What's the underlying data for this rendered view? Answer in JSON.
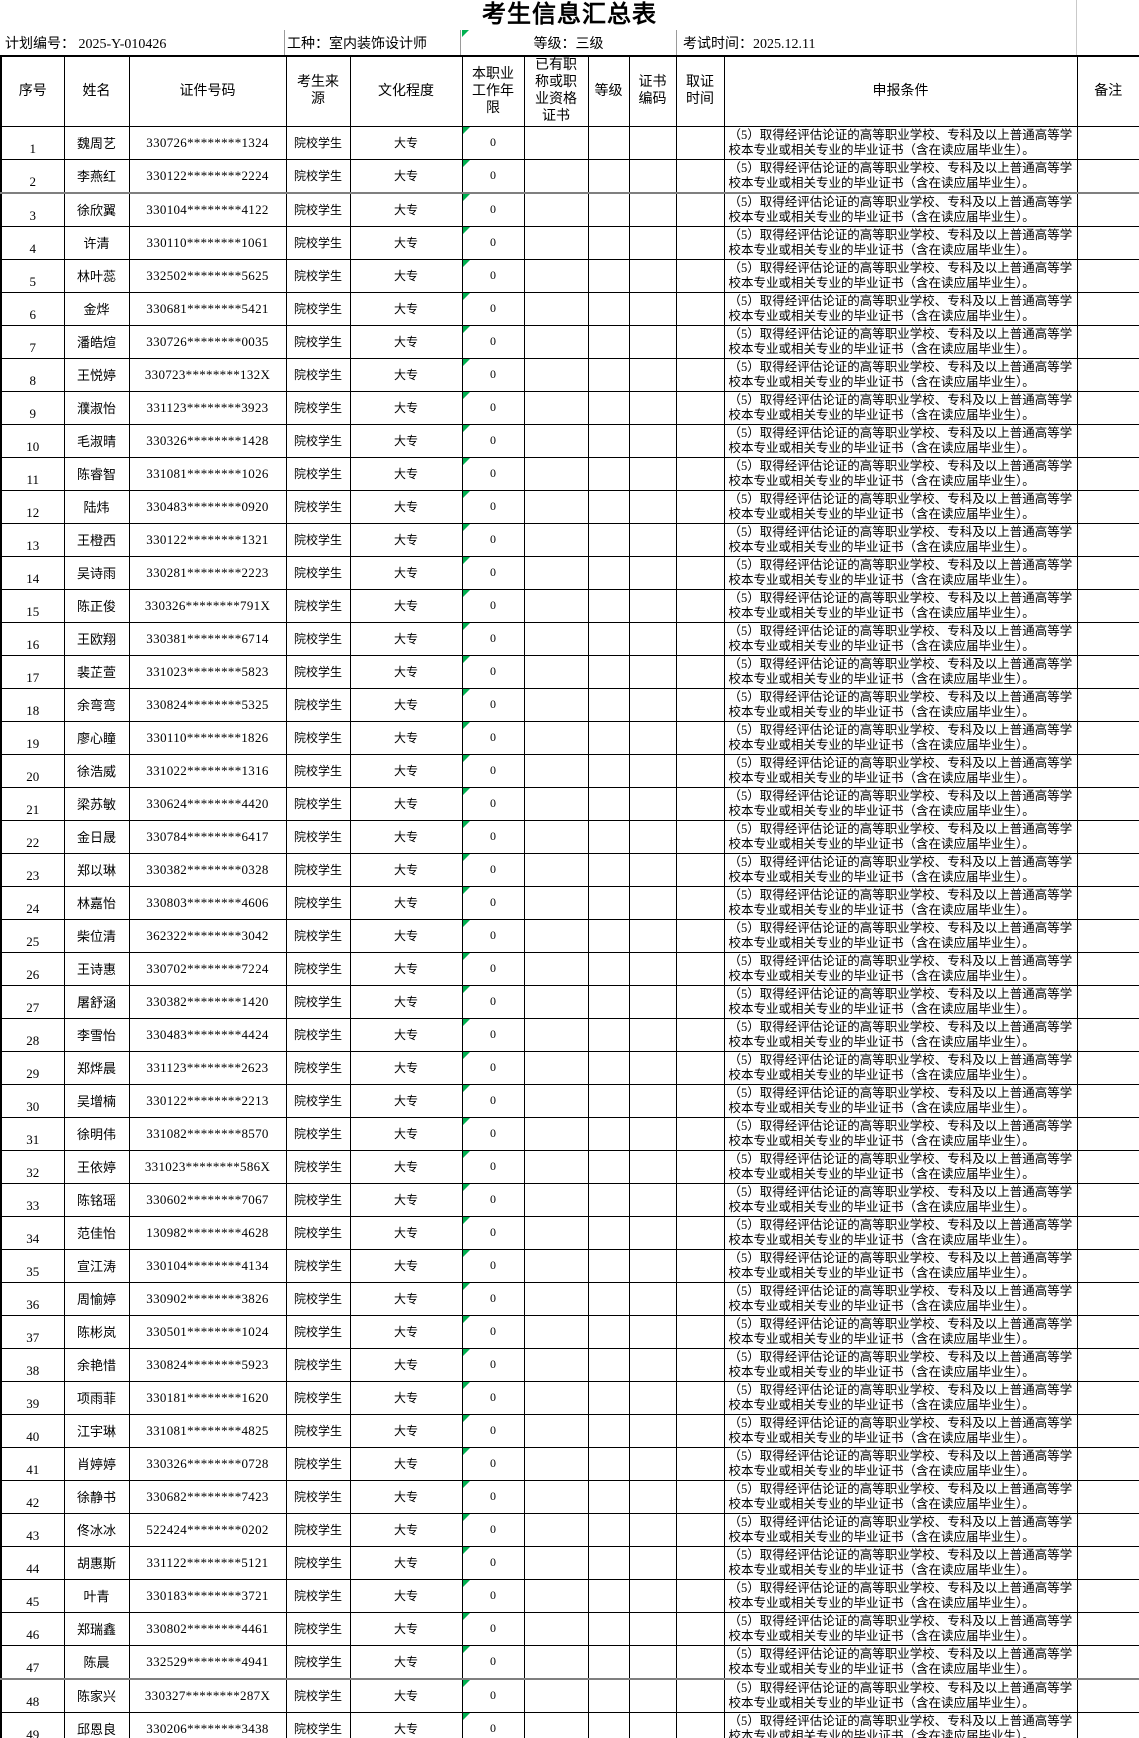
{
  "title": "考生信息汇总表",
  "info": {
    "plan": "计划编号： 2025-Y-010426",
    "trade": "工种：室内装饰设计师",
    "level": "等级：三级",
    "exam_time": "考试时间：2025.12.11"
  },
  "columns": [
    "序号",
    "姓名",
    "证件号码",
    "考生来源",
    "文化程度",
    "本职业工作年限",
    "已有职称或职业资格证书",
    "等级",
    "证书编码",
    "取证时间",
    "申报条件",
    "备注"
  ],
  "row_defaults": {
    "source": "院校学生",
    "education": "大专",
    "work_years": "0",
    "existing_cert": "",
    "level": "",
    "cert_code": "",
    "cert_time": "",
    "condition": "（5）取得经评估论证的高等职业学校、专科及以上普通高等学校本专业或相关专业的毕业证书（含在读应届毕业生）。",
    "remark": ""
  },
  "rows": [
    {
      "no": "1",
      "name": "魏周艺",
      "id": "330726********1324"
    },
    {
      "no": "2",
      "name": "李燕红",
      "id": "330122********2224"
    },
    {
      "no": "3",
      "name": "徐欣翼",
      "id": "330104********4122"
    },
    {
      "no": "4",
      "name": "许清",
      "id": "330110********1061"
    },
    {
      "no": "5",
      "name": "林叶蕊",
      "id": "332502********5625"
    },
    {
      "no": "6",
      "name": "金烨",
      "id": "330681********5421"
    },
    {
      "no": "7",
      "name": "潘皓煊",
      "id": "330726********0035"
    },
    {
      "no": "8",
      "name": "王悦婷",
      "id": "330723********132X"
    },
    {
      "no": "9",
      "name": "濮淑怡",
      "id": "331123********3923"
    },
    {
      "no": "10",
      "name": "毛淑晴",
      "id": "330326********1428"
    },
    {
      "no": "11",
      "name": "陈睿智",
      "id": "331081********1026"
    },
    {
      "no": "12",
      "name": "陆炜",
      "id": "330483********0920"
    },
    {
      "no": "13",
      "name": "王橙西",
      "id": "330122********1321"
    },
    {
      "no": "14",
      "name": "吴诗雨",
      "id": "330281********2223"
    },
    {
      "no": "15",
      "name": "陈正俊",
      "id": "330326********791X"
    },
    {
      "no": "16",
      "name": "王欧翔",
      "id": "330381********6714"
    },
    {
      "no": "17",
      "name": "裴芷萱",
      "id": "331023********5823"
    },
    {
      "no": "18",
      "name": "余弯弯",
      "id": "330824********5325"
    },
    {
      "no": "19",
      "name": "廖心瞳",
      "id": "330110********1826"
    },
    {
      "no": "20",
      "name": "徐浩威",
      "id": "331022********1316"
    },
    {
      "no": "21",
      "name": "梁苏敏",
      "id": "330624********4420"
    },
    {
      "no": "22",
      "name": "金日晟",
      "id": "330784********6417"
    },
    {
      "no": "23",
      "name": "郑以琳",
      "id": "330382********0328"
    },
    {
      "no": "24",
      "name": "林嘉怡",
      "id": "330803********4606"
    },
    {
      "no": "25",
      "name": "柴位清",
      "id": "362322********3042"
    },
    {
      "no": "26",
      "name": "王诗惠",
      "id": "330702********7224"
    },
    {
      "no": "27",
      "name": "屠舒涵",
      "id": "330382********1420"
    },
    {
      "no": "28",
      "name": "李雪怡",
      "id": "330483********4424"
    },
    {
      "no": "29",
      "name": "郑烨晨",
      "id": "331123********2623"
    },
    {
      "no": "30",
      "name": "吴增楠",
      "id": "330122********2213"
    },
    {
      "no": "31",
      "name": "徐明伟",
      "id": "331082********8570"
    },
    {
      "no": "32",
      "name": "王依婷",
      "id": "331023********586X"
    },
    {
      "no": "33",
      "name": "陈铭瑶",
      "id": "330602********7067"
    },
    {
      "no": "34",
      "name": "范佳怡",
      "id": "130982********4628"
    },
    {
      "no": "35",
      "name": "宣江涛",
      "id": "330104********4134"
    },
    {
      "no": "36",
      "name": "周愉婷",
      "id": "330902********3826"
    },
    {
      "no": "37",
      "name": "陈彬岚",
      "id": "330501********1024"
    },
    {
      "no": "38",
      "name": "余艳惜",
      "id": "330824********5923"
    },
    {
      "no": "39",
      "name": "项雨菲",
      "id": "330181********1620"
    },
    {
      "no": "40",
      "name": "江宇琳",
      "id": "331081********4825"
    },
    {
      "no": "41",
      "name": "肖婷婷",
      "id": "330326********0728"
    },
    {
      "no": "42",
      "name": "徐静书",
      "id": "330682********7423"
    },
    {
      "no": "43",
      "name": "佟冰冰",
      "id": "522424********0202"
    },
    {
      "no": "44",
      "name": "胡惠斯",
      "id": "331122********5121"
    },
    {
      "no": "45",
      "name": "叶青",
      "id": "330183********3721"
    },
    {
      "no": "46",
      "name": "郑瑞鑫",
      "id": "330802********4461"
    },
    {
      "no": "47",
      "name": "陈晨",
      "id": "332529********4941"
    },
    {
      "no": "48",
      "name": "陈家兴",
      "id": "330327********287X"
    },
    {
      "no": "49",
      "name": "邱恩良",
      "id": "330206********3438"
    }
  ],
  "colors": {
    "error_triangle": "#00B050",
    "grid": "#000000",
    "seam_line": "#7F7F7F"
  }
}
